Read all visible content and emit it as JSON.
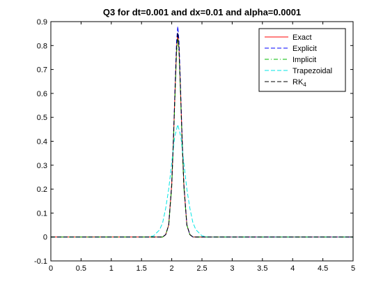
{
  "chart_data": {
    "type": "line",
    "title": "Q3 for dt=0.001 and dx=0.01 and alpha=0.0001",
    "xlabel": "",
    "ylabel": "",
    "xlim": [
      0,
      5
    ],
    "ylim": [
      -0.1,
      0.9
    ],
    "xticks": [
      "0",
      "0.5",
      "1",
      "1.5",
      "2",
      "2.5",
      "3",
      "3.5",
      "4",
      "4.5",
      "5"
    ],
    "yticks": [
      "-0.1",
      "0",
      "0.1",
      "0.2",
      "0.3",
      "0.4",
      "0.5",
      "0.6",
      "0.7",
      "0.8",
      "0.9"
    ],
    "grid": false,
    "legend_position": "top-right",
    "series": [
      {
        "name": "Exact",
        "color": "#ff0000",
        "style": "solid",
        "x": [
          0,
          1.8,
          1.85,
          1.9,
          1.95,
          2.0,
          2.03,
          2.06,
          2.08,
          2.1,
          2.12,
          2.14,
          2.17,
          2.2,
          2.25,
          2.3,
          2.35,
          2.4,
          5
        ],
        "y": [
          0,
          0,
          0.0,
          0.01,
          0.05,
          0.22,
          0.42,
          0.65,
          0.79,
          0.85,
          0.79,
          0.65,
          0.42,
          0.22,
          0.05,
          0.01,
          0,
          0,
          0
        ]
      },
      {
        "name": "Explicit",
        "color": "#0000ff",
        "style": "dashed",
        "x": [
          0,
          1.8,
          1.85,
          1.9,
          1.95,
          2.0,
          2.03,
          2.06,
          2.08,
          2.1,
          2.12,
          2.14,
          2.17,
          2.2,
          2.25,
          2.3,
          2.35,
          2.4,
          5
        ],
        "y": [
          0,
          0,
          0.0,
          0.01,
          0.05,
          0.22,
          0.43,
          0.67,
          0.82,
          0.88,
          0.82,
          0.67,
          0.43,
          0.22,
          0.05,
          0.01,
          0,
          0,
          0
        ]
      },
      {
        "name": "Implicit",
        "color": "#00bb00",
        "style": "dashdot",
        "x": [
          0,
          1.8,
          1.85,
          1.9,
          1.95,
          2.0,
          2.03,
          2.06,
          2.08,
          2.1,
          2.12,
          2.14,
          2.17,
          2.2,
          2.25,
          2.3,
          2.35,
          2.4,
          5
        ],
        "y": [
          0,
          0,
          0.0,
          0.01,
          0.05,
          0.21,
          0.41,
          0.63,
          0.77,
          0.83,
          0.77,
          0.63,
          0.41,
          0.21,
          0.05,
          0.01,
          0,
          0,
          0
        ]
      },
      {
        "name": "Trapezoidal",
        "color": "#00e5e5",
        "style": "dashed",
        "x": [
          0,
          1.6,
          1.7,
          1.8,
          1.85,
          1.9,
          1.95,
          2.0,
          2.05,
          2.1,
          2.15,
          2.2,
          2.25,
          2.3,
          2.35,
          2.4,
          2.5,
          2.6,
          5
        ],
        "y": [
          0,
          0,
          0.005,
          0.03,
          0.06,
          0.12,
          0.2,
          0.31,
          0.42,
          0.47,
          0.42,
          0.31,
          0.2,
          0.12,
          0.06,
          0.03,
          0.005,
          0,
          0
        ]
      },
      {
        "name": "RK4",
        "color": "#000000",
        "style": "dashed",
        "x": [
          0,
          1.8,
          1.85,
          1.9,
          1.95,
          2.0,
          2.03,
          2.06,
          2.08,
          2.1,
          2.12,
          2.14,
          2.17,
          2.2,
          2.25,
          2.3,
          2.35,
          2.4,
          5
        ],
        "y": [
          0,
          0,
          0.0,
          0.01,
          0.05,
          0.22,
          0.42,
          0.65,
          0.79,
          0.855,
          0.79,
          0.65,
          0.42,
          0.22,
          0.05,
          0.01,
          0,
          0,
          0
        ]
      }
    ],
    "legend": {
      "entries": [
        {
          "label": "Exact",
          "series": 0
        },
        {
          "label": "Explicit",
          "series": 1
        },
        {
          "label": "Implicit",
          "series": 2
        },
        {
          "label": "Trapezoidal",
          "series": 3
        },
        {
          "label_main": "RK",
          "label_sub": "4",
          "series": 4
        }
      ]
    }
  }
}
